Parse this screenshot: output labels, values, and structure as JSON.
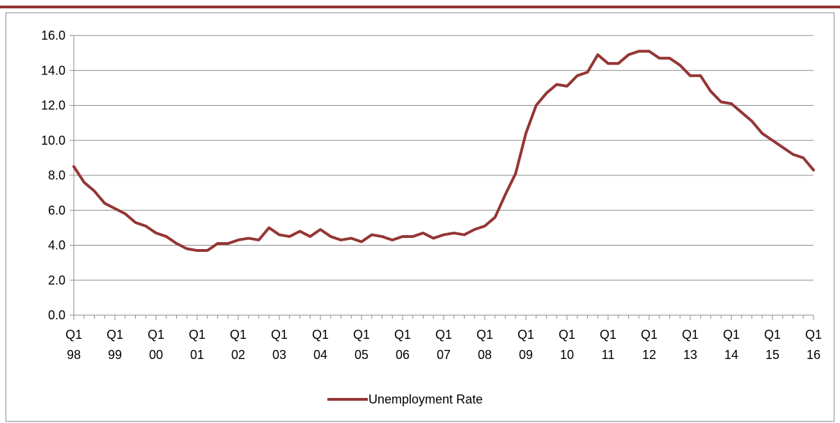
{
  "theme": {
    "accent": "#943634",
    "grid": "#8c8c8c",
    "axis": "#8c8c8c"
  },
  "chart_data": {
    "type": "line",
    "title": "",
    "xlabel": "",
    "ylabel": "",
    "ylim": [
      0,
      16
    ],
    "ytick_step": 2,
    "y_tick_labels": [
      "0.0",
      "2.0",
      "4.0",
      "6.0",
      "8.0",
      "10.0",
      "12.0",
      "14.0",
      "16.0"
    ],
    "grid": true,
    "legend": "bottom-center",
    "x_tick_labels": [
      {
        "q": "Q1",
        "yr": "98"
      },
      {
        "q": "Q1",
        "yr": "99"
      },
      {
        "q": "Q1",
        "yr": "00"
      },
      {
        "q": "Q1",
        "yr": "01"
      },
      {
        "q": "Q1",
        "yr": "02"
      },
      {
        "q": "Q1",
        "yr": "03"
      },
      {
        "q": "Q1",
        "yr": "04"
      },
      {
        "q": "Q1",
        "yr": "05"
      },
      {
        "q": "Q1",
        "yr": "06"
      },
      {
        "q": "Q1",
        "yr": "07"
      },
      {
        "q": "Q1",
        "yr": "08"
      },
      {
        "q": "Q1",
        "yr": "09"
      },
      {
        "q": "Q1",
        "yr": "10"
      },
      {
        "q": "Q1",
        "yr": "11"
      },
      {
        "q": "Q1",
        "yr": "12"
      },
      {
        "q": "Q1",
        "yr": "13"
      },
      {
        "q": "Q1",
        "yr": "14"
      },
      {
        "q": "Q1",
        "yr": "15"
      },
      {
        "q": "Q1",
        "yr": "16"
      }
    ],
    "series": [
      {
        "name": "Unemployment Rate",
        "color": "#943634",
        "values": [
          8.5,
          7.6,
          7.1,
          6.4,
          6.1,
          5.8,
          5.3,
          5.1,
          4.7,
          4.5,
          4.1,
          3.8,
          3.7,
          3.7,
          4.1,
          4.1,
          4.3,
          4.4,
          4.3,
          5.0,
          4.6,
          4.5,
          4.8,
          4.5,
          4.9,
          4.5,
          4.3,
          4.4,
          4.2,
          4.6,
          4.5,
          4.3,
          4.5,
          4.5,
          4.7,
          4.4,
          4.6,
          4.7,
          4.6,
          4.9,
          5.1,
          5.6,
          6.9,
          8.1,
          10.4,
          12.0,
          12.7,
          13.2,
          13.1,
          13.7,
          13.9,
          14.9,
          14.4,
          14.4,
          14.9,
          15.1,
          15.1,
          14.7,
          14.7,
          14.3,
          13.7,
          13.7,
          12.8,
          12.2,
          12.1,
          11.6,
          11.1,
          10.4,
          10.0,
          9.6,
          9.2,
          9.0,
          8.3
        ]
      }
    ]
  }
}
